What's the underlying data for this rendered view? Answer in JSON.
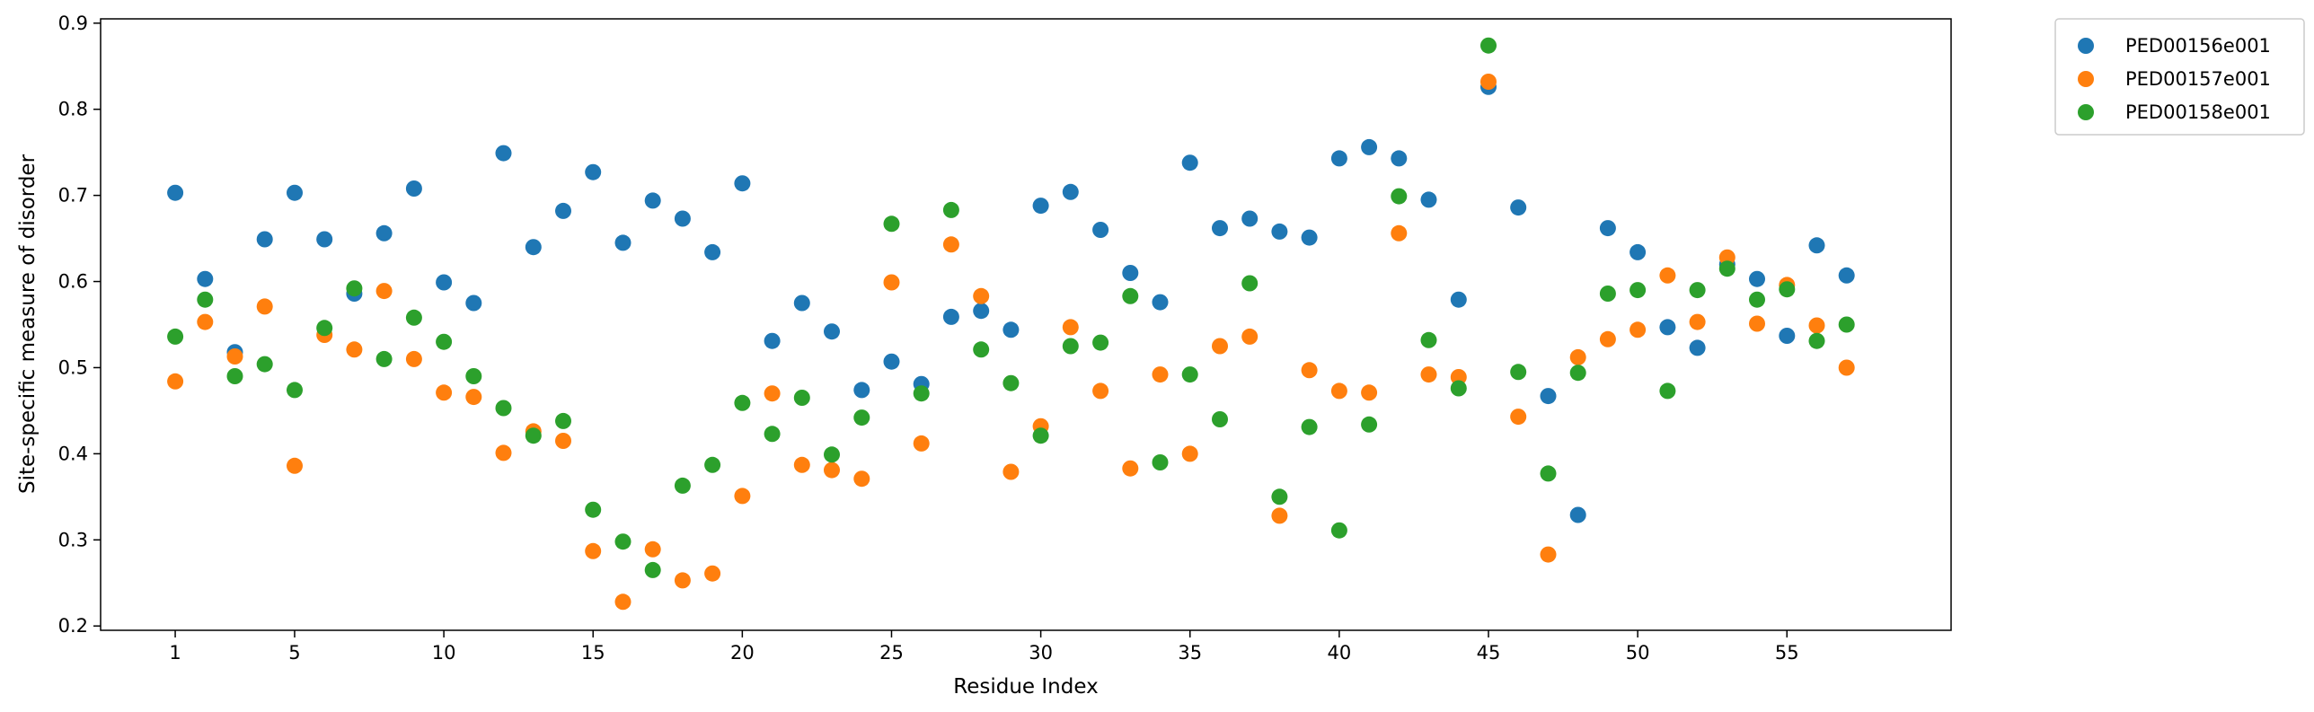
{
  "chart_data": {
    "type": "scatter",
    "title": "",
    "xlabel": "Residue Index",
    "ylabel": "Site-specific measure of disorder",
    "xlim": [
      -1.5,
      60.5
    ],
    "ylim": [
      0.195,
      0.905
    ],
    "x_ticks": [
      1,
      5,
      10,
      15,
      20,
      25,
      30,
      35,
      40,
      45,
      50,
      55
    ],
    "y_ticks": [
      0.2,
      0.3,
      0.4,
      0.5,
      0.6,
      0.7,
      0.8,
      0.9
    ],
    "y_tick_labels": [
      "0.2",
      "0.3",
      "0.4",
      "0.5",
      "0.6",
      "0.7",
      "0.8",
      "0.9"
    ],
    "grid": false,
    "legend_position": "outside upper right",
    "x": [
      1,
      2,
      3,
      4,
      5,
      6,
      7,
      8,
      9,
      10,
      11,
      12,
      13,
      14,
      15,
      16,
      17,
      18,
      19,
      20,
      21,
      22,
      23,
      24,
      25,
      26,
      27,
      28,
      29,
      30,
      31,
      32,
      33,
      34,
      35,
      36,
      37,
      38,
      39,
      40,
      41,
      42,
      43,
      44,
      45,
      46,
      47,
      48,
      49,
      50,
      51,
      52,
      53,
      54,
      55,
      56,
      57
    ],
    "series": [
      {
        "name": "PED00156e001",
        "color": "#1f77b4",
        "values": [
          0.703,
          0.603,
          0.518,
          0.649,
          0.703,
          0.649,
          0.586,
          0.656,
          0.708,
          0.599,
          0.575,
          0.749,
          0.64,
          0.682,
          0.727,
          0.645,
          0.694,
          0.673,
          0.634,
          0.714,
          0.531,
          0.575,
          0.542,
          0.474,
          0.507,
          0.481,
          0.559,
          0.566,
          0.544,
          0.688,
          0.704,
          0.66,
          0.61,
          0.576,
          0.738,
          0.662,
          0.673,
          0.658,
          0.651,
          0.743,
          0.756,
          0.743,
          0.695,
          0.579,
          0.826,
          0.686,
          0.467,
          0.329,
          0.662,
          0.634,
          0.547,
          0.523,
          0.62,
          0.603,
          0.537,
          0.642,
          0.607
        ]
      },
      {
        "name": "PED00157e001",
        "color": "#ff7f0e",
        "values": [
          0.484,
          0.553,
          0.513,
          0.571,
          0.386,
          0.538,
          0.521,
          0.589,
          0.51,
          0.471,
          0.466,
          0.401,
          0.426,
          0.415,
          0.287,
          0.228,
          0.289,
          0.253,
          0.261,
          0.351,
          0.47,
          0.387,
          0.381,
          0.371,
          0.599,
          0.412,
          0.643,
          0.583,
          0.379,
          0.432,
          0.547,
          0.473,
          0.383,
          0.492,
          0.4,
          0.525,
          0.536,
          0.328,
          0.497,
          0.473,
          0.471,
          0.656,
          0.492,
          0.489,
          0.832,
          0.443,
          0.283,
          0.512,
          0.533,
          0.544,
          0.607,
          0.553,
          0.628,
          0.551,
          0.596,
          0.549,
          0.5
        ]
      },
      {
        "name": "PED00158e001",
        "color": "#2ca02c",
        "values": [
          0.536,
          0.579,
          0.49,
          0.504,
          0.474,
          0.546,
          0.592,
          0.51,
          0.558,
          0.53,
          0.49,
          0.453,
          0.421,
          0.438,
          0.335,
          0.298,
          0.265,
          0.363,
          0.387,
          0.459,
          0.423,
          0.465,
          0.399,
          0.442,
          0.667,
          0.47,
          0.683,
          0.521,
          0.482,
          0.421,
          0.525,
          0.529,
          0.583,
          0.39,
          0.492,
          0.44,
          0.598,
          0.35,
          0.431,
          0.311,
          0.434,
          0.699,
          0.532,
          0.476,
          0.874,
          0.495,
          0.377,
          0.494,
          0.586,
          0.59,
          0.473,
          0.59,
          0.615,
          0.579,
          0.591,
          0.531,
          0.55
        ]
      }
    ]
  }
}
